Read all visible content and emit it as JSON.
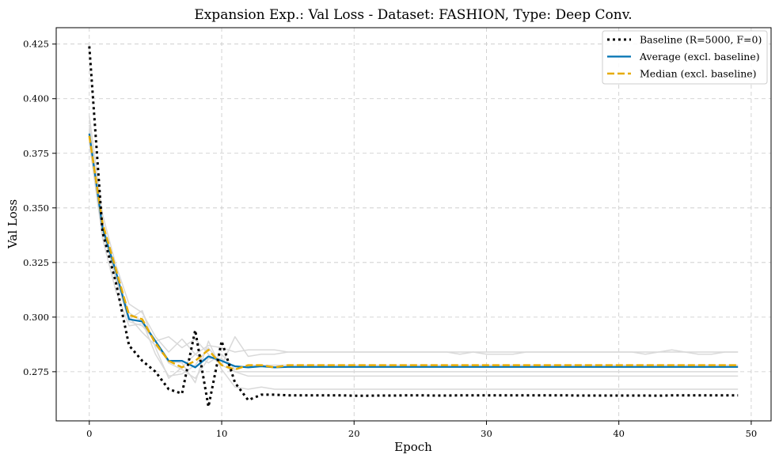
{
  "chart_data": {
    "type": "line",
    "title": "Expansion Exp.: Val Loss - Dataset: FASHION, Type: Deep Conv.",
    "xlabel": "Epoch",
    "ylabel": "Val Loss",
    "xlim": [
      -2.5,
      51.5
    ],
    "ylim": [
      0.2525,
      0.4325
    ],
    "xticks": [
      0,
      10,
      20,
      30,
      40,
      50
    ],
    "yticks": [
      0.275,
      0.3,
      0.325,
      0.35,
      0.375,
      0.4,
      0.425
    ],
    "xtick_labels": [
      "0",
      "10",
      "20",
      "30",
      "40",
      "50"
    ],
    "ytick_labels": [
      "0.275",
      "0.300",
      "0.325",
      "0.350",
      "0.375",
      "0.400",
      "0.425"
    ],
    "grid": true,
    "legend_position": "top-right",
    "x": [
      0,
      1,
      2,
      3,
      4,
      5,
      6,
      7,
      8,
      9,
      10,
      11,
      12,
      13,
      14,
      15,
      16,
      17,
      18,
      19,
      20,
      21,
      22,
      23,
      24,
      25,
      26,
      27,
      28,
      29,
      30,
      31,
      32,
      33,
      34,
      35,
      36,
      37,
      38,
      39,
      40,
      41,
      42,
      43,
      44,
      45,
      46,
      47,
      48,
      49
    ],
    "series": [
      {
        "name": "Baseline (R=5000, F=0)",
        "color": "#000000",
        "style": "dotted",
        "values": [
          0.424,
          0.339,
          0.316,
          0.287,
          0.28,
          0.275,
          0.267,
          0.265,
          0.294,
          0.259,
          0.289,
          0.27,
          0.262,
          0.2645,
          0.2645,
          0.2642,
          0.2642,
          0.2642,
          0.2642,
          0.2642,
          0.264,
          0.264,
          0.2641,
          0.2641,
          0.2642,
          0.2642,
          0.2641,
          0.2641,
          0.2642,
          0.2642,
          0.2642,
          0.2642,
          0.2642,
          0.2642,
          0.2642,
          0.2642,
          0.2642,
          0.2641,
          0.2641,
          0.2641,
          0.2641,
          0.2641,
          0.2641,
          0.264,
          0.2642,
          0.2642,
          0.2642,
          0.2642,
          0.2642,
          0.2642
        ]
      },
      {
        "name": "Average (excl. baseline)",
        "color": "#0072B2",
        "style": "solid",
        "values": [
          0.384,
          0.341,
          0.321,
          0.299,
          0.298,
          0.289,
          0.28,
          0.28,
          0.277,
          0.282,
          0.28,
          0.2775,
          0.277,
          0.2775,
          0.277,
          0.2772,
          0.2772,
          0.2772,
          0.2772,
          0.2772,
          0.2772,
          0.2772,
          0.2772,
          0.2772,
          0.2772,
          0.2772,
          0.2772,
          0.2772,
          0.2772,
          0.2772,
          0.2772,
          0.2772,
          0.2772,
          0.2772,
          0.2772,
          0.2772,
          0.2772,
          0.2772,
          0.2772,
          0.2772,
          0.2772,
          0.2772,
          0.2772,
          0.2772,
          0.2772,
          0.2772,
          0.2772,
          0.2772,
          0.2772,
          0.2772
        ]
      },
      {
        "name": "Median (excl. baseline)",
        "color": "#E6AB02",
        "style": "dashed",
        "values": [
          0.383,
          0.343,
          0.322,
          0.301,
          0.299,
          0.288,
          0.28,
          0.277,
          0.28,
          0.285,
          0.278,
          0.276,
          0.278,
          0.278,
          0.277,
          0.278,
          0.278,
          0.278,
          0.278,
          0.278,
          0.278,
          0.278,
          0.278,
          0.278,
          0.278,
          0.278,
          0.278,
          0.278,
          0.278,
          0.278,
          0.278,
          0.278,
          0.278,
          0.278,
          0.278,
          0.278,
          0.278,
          0.278,
          0.278,
          0.278,
          0.278,
          0.278,
          0.278,
          0.278,
          0.278,
          0.278,
          0.278,
          0.278,
          0.278,
          0.278
        ]
      }
    ],
    "background_runs": {
      "color": "#d9d9d9",
      "values": [
        [
          0.392,
          0.347,
          0.324,
          0.306,
          0.302,
          0.291,
          0.284,
          0.29,
          0.283,
          0.287,
          0.286,
          0.284,
          0.285,
          0.285,
          0.285,
          0.284,
          0.284,
          0.284,
          0.284,
          0.284,
          0.284,
          0.284,
          0.284,
          0.284,
          0.284,
          0.284,
          0.284,
          0.284,
          0.284,
          0.284,
          0.284,
          0.284,
          0.284,
          0.284,
          0.284,
          0.284,
          0.284,
          0.284,
          0.284,
          0.284,
          0.284,
          0.284,
          0.284,
          0.284,
          0.284,
          0.284,
          0.284,
          0.284,
          0.284,
          0.284
        ],
        [
          0.38,
          0.336,
          0.312,
          0.296,
          0.297,
          0.289,
          0.291,
          0.286,
          0.29,
          0.283,
          0.278,
          0.291,
          0.282,
          0.283,
          0.283,
          0.284,
          0.284,
          0.284,
          0.284,
          0.284,
          0.284,
          0.284,
          0.284,
          0.284,
          0.284,
          0.284,
          0.284,
          0.284,
          0.283,
          0.284,
          0.283,
          0.283,
          0.283,
          0.284,
          0.284,
          0.284,
          0.284,
          0.284,
          0.284,
          0.284,
          0.284,
          0.284,
          0.283,
          0.284,
          0.285,
          0.284,
          0.283,
          0.283,
          0.284,
          0.284
        ],
        [
          0.386,
          0.344,
          0.318,
          0.299,
          0.303,
          0.286,
          0.272,
          0.277,
          0.283,
          0.279,
          0.283,
          0.276,
          0.278,
          0.278,
          0.278,
          0.278,
          0.278,
          0.278,
          0.278,
          0.278,
          0.278,
          0.278,
          0.278,
          0.278,
          0.278,
          0.278,
          0.278,
          0.278,
          0.278,
          0.278,
          0.278,
          0.278,
          0.278,
          0.278,
          0.278,
          0.278,
          0.278,
          0.278,
          0.278,
          0.278,
          0.278,
          0.278,
          0.278,
          0.278,
          0.278,
          0.278,
          0.278,
          0.278,
          0.278,
          0.278
        ],
        [
          0.388,
          0.338,
          0.32,
          0.302,
          0.298,
          0.283,
          0.273,
          0.274,
          0.278,
          0.286,
          0.278,
          0.275,
          0.275,
          0.275,
          0.275,
          0.275,
          0.275,
          0.275,
          0.275,
          0.275,
          0.275,
          0.275,
          0.275,
          0.275,
          0.275,
          0.275,
          0.275,
          0.275,
          0.275,
          0.275,
          0.275,
          0.275,
          0.275,
          0.275,
          0.275,
          0.275,
          0.275,
          0.275,
          0.275,
          0.275,
          0.275,
          0.275,
          0.275,
          0.275,
          0.275,
          0.275,
          0.275,
          0.275,
          0.275,
          0.275
        ],
        [
          0.385,
          0.34,
          0.318,
          0.298,
          0.296,
          0.289,
          0.279,
          0.276,
          0.272,
          0.281,
          0.281,
          0.275,
          0.273,
          0.273,
          0.273,
          0.273,
          0.273,
          0.273,
          0.273,
          0.273,
          0.273,
          0.273,
          0.273,
          0.273,
          0.273,
          0.273,
          0.273,
          0.273,
          0.273,
          0.273,
          0.273,
          0.273,
          0.273,
          0.273,
          0.273,
          0.273,
          0.273,
          0.273,
          0.273,
          0.273,
          0.273,
          0.273,
          0.273,
          0.273,
          0.273,
          0.273,
          0.273,
          0.273,
          0.273,
          0.273
        ],
        [
          0.384,
          0.341,
          0.317,
          0.3,
          0.293,
          0.287,
          0.28,
          0.279,
          0.27,
          0.289,
          0.276,
          0.268,
          0.267,
          0.268,
          0.267,
          0.267,
          0.267,
          0.267,
          0.267,
          0.267,
          0.267,
          0.267,
          0.267,
          0.267,
          0.267,
          0.267,
          0.267,
          0.267,
          0.267,
          0.267,
          0.267,
          0.267,
          0.267,
          0.267,
          0.267,
          0.267,
          0.267,
          0.267,
          0.267,
          0.267,
          0.267,
          0.267,
          0.267,
          0.267,
          0.267,
          0.267,
          0.267,
          0.267,
          0.267,
          0.267
        ]
      ]
    }
  }
}
